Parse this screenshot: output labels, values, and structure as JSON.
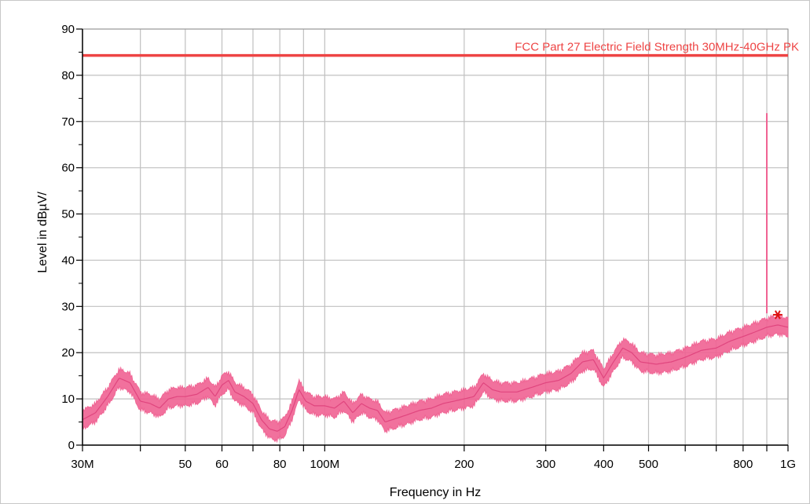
{
  "chart_data": {
    "type": "line",
    "xlabel": "Frequency in Hz",
    "ylabel": "Level in dBµV/",
    "xscale": "log",
    "xlim": [
      30000000,
      1000000000
    ],
    "ylim": [
      0,
      90
    ],
    "grid": true,
    "x_ticks": [
      {
        "value": 30000000,
        "label": "30M"
      },
      {
        "value": 50000000,
        "label": "50"
      },
      {
        "value": 60000000,
        "label": "60"
      },
      {
        "value": 80000000,
        "label": "80"
      },
      {
        "value": 100000000,
        "label": "100M"
      },
      {
        "value": 200000000,
        "label": "200"
      },
      {
        "value": 300000000,
        "label": "300"
      },
      {
        "value": 400000000,
        "label": "400"
      },
      {
        "value": 500000000,
        "label": "500"
      },
      {
        "value": 800000000,
        "label": "800"
      },
      {
        "value": 1000000000,
        "label": "1G"
      }
    ],
    "x_minor_ticks": [
      40000000,
      70000000,
      90000000,
      600000000,
      700000000,
      900000000
    ],
    "y_ticks": [
      0,
      10,
      20,
      30,
      40,
      50,
      60,
      70,
      80,
      90
    ],
    "limit_line": {
      "name": "FCC Part 27 Electric Field Strength 30MHz-40GHz PK",
      "value": 84.3,
      "color": "#ee4444"
    },
    "series": [
      {
        "color": "#f06292",
        "points": [
          [
            30000000,
            5.5
          ],
          [
            32000000,
            7.0
          ],
          [
            34000000,
            10.5
          ],
          [
            36000000,
            14.5
          ],
          [
            38000000,
            13.5
          ],
          [
            40000000,
            9.5
          ],
          [
            42000000,
            9.0
          ],
          [
            44000000,
            8.0
          ],
          [
            46000000,
            10.0
          ],
          [
            48000000,
            10.5
          ],
          [
            50000000,
            10.5
          ],
          [
            53000000,
            11.0
          ],
          [
            56000000,
            12.5
          ],
          [
            58000000,
            10.5
          ],
          [
            60000000,
            13.0
          ],
          [
            62000000,
            14.0
          ],
          [
            64000000,
            11.5
          ],
          [
            67000000,
            10.5
          ],
          [
            70000000,
            9.0
          ],
          [
            73000000,
            5.5
          ],
          [
            76000000,
            3.5
          ],
          [
            79000000,
            3.0
          ],
          [
            82000000,
            4.0
          ],
          [
            85000000,
            7.5
          ],
          [
            88000000,
            12.0
          ],
          [
            91000000,
            9.5
          ],
          [
            95000000,
            8.5
          ],
          [
            100000000,
            8.5
          ],
          [
            105000000,
            8.0
          ],
          [
            110000000,
            9.5
          ],
          [
            115000000,
            7.0
          ],
          [
            120000000,
            9.0
          ],
          [
            125000000,
            8.0
          ],
          [
            130000000,
            7.5
          ],
          [
            135000000,
            5.0
          ],
          [
            140000000,
            5.5
          ],
          [
            150000000,
            6.5
          ],
          [
            160000000,
            7.5
          ],
          [
            170000000,
            8.0
          ],
          [
            180000000,
            9.0
          ],
          [
            190000000,
            9.5
          ],
          [
            200000000,
            10.0
          ],
          [
            210000000,
            10.5
          ],
          [
            220000000,
            13.5
          ],
          [
            230000000,
            12.0
          ],
          [
            240000000,
            11.5
          ],
          [
            260000000,
            11.5
          ],
          [
            280000000,
            12.5
          ],
          [
            300000000,
            13.5
          ],
          [
            320000000,
            14.0
          ],
          [
            340000000,
            15.5
          ],
          [
            360000000,
            18.0
          ],
          [
            380000000,
            18.5
          ],
          [
            400000000,
            14.5
          ],
          [
            420000000,
            18.0
          ],
          [
            440000000,
            21.0
          ],
          [
            460000000,
            20.0
          ],
          [
            480000000,
            18.0
          ],
          [
            520000000,
            17.5
          ],
          [
            560000000,
            18.0
          ],
          [
            600000000,
            19.0
          ],
          [
            650000000,
            20.5
          ],
          [
            700000000,
            21.0
          ],
          [
            750000000,
            22.5
          ],
          [
            800000000,
            23.5
          ],
          [
            850000000,
            24.5
          ],
          [
            900000000,
            25.5
          ],
          [
            950000000,
            26.0
          ],
          [
            1000000000,
            25.5
          ]
        ]
      }
    ],
    "spike": {
      "x": 900000000,
      "y_top": 71.8,
      "y_bottom": 28.5,
      "color": "#f06292"
    },
    "marker": {
      "x": 950000000,
      "y": 28.2,
      "symbol": "*",
      "color": "#dd1111"
    }
  }
}
